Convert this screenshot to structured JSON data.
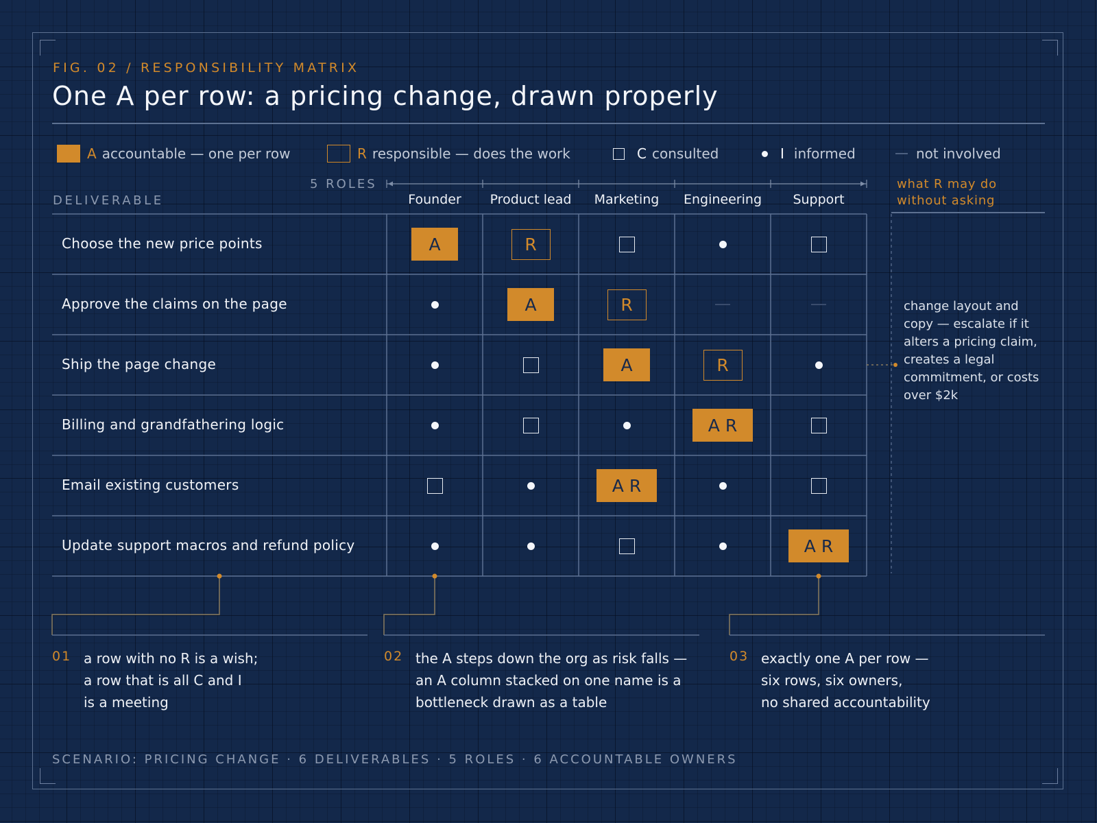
{
  "eyebrow": "FIG. 02 / RESPONSIBILITY MATRIX",
  "title": "One A per row: a pricing change, drawn properly",
  "legend": {
    "accountable": {
      "key": "A",
      "text": "accountable — one per row"
    },
    "responsible": {
      "key": "R",
      "text": "responsible — does the work"
    },
    "consulted": {
      "key": "C",
      "text": "consulted"
    },
    "informed": {
      "key": "I",
      "text": "informed"
    },
    "not_involved": {
      "text": "not involved"
    }
  },
  "roles_label": "5 ROLES",
  "deliverable_header": "DELIVERABLE",
  "roles": [
    "Founder",
    "Product lead",
    "Marketing",
    "Engineering",
    "Support"
  ],
  "side_header": [
    "what R may do",
    "without asking"
  ],
  "rows": [
    {
      "label": "Choose the new price points",
      "cells": [
        "A",
        "R",
        "C",
        "I",
        "C"
      ]
    },
    {
      "label": "Approve the claims on the page",
      "cells": [
        "I",
        "A",
        "R",
        "-",
        "-"
      ]
    },
    {
      "label": "Ship the page change",
      "cells": [
        "I",
        "C",
        "A",
        "R",
        "I"
      ]
    },
    {
      "label": "Billing and grandfathering logic",
      "cells": [
        "I",
        "C",
        "I",
        "AR",
        "C"
      ]
    },
    {
      "label": "Email existing customers",
      "cells": [
        "C",
        "I",
        "AR",
        "I",
        "C"
      ]
    },
    {
      "label": "Update support macros and refund policy",
      "cells": [
        "I",
        "I",
        "C",
        "I",
        "AR"
      ]
    }
  ],
  "cell_text": {
    "A": "A",
    "R": "R",
    "AR": "A R"
  },
  "side_note": "change layout and copy — escalate if it alters a pricing claim, creates a legal commitment, or costs over $2k",
  "notes": [
    {
      "num": "01",
      "text": "a row with no R is a wish;\na row that is all C and I\nis a meeting"
    },
    {
      "num": "02",
      "text": "the A steps down the org as risk falls —\nan A column stacked on one name is a\nbottleneck drawn as a table"
    },
    {
      "num": "03",
      "text": "exactly one A per row —\nsix rows, six owners,\nno shared accountability"
    }
  ],
  "footer": "SCENARIO: PRICING CHANGE · 6 DELIVERABLES · 5 ROLES · 6 ACCOUNTABLE OWNERS",
  "colors": {
    "accent": "#d28a2b",
    "background": "#13284a",
    "rule": "#5d7191"
  }
}
